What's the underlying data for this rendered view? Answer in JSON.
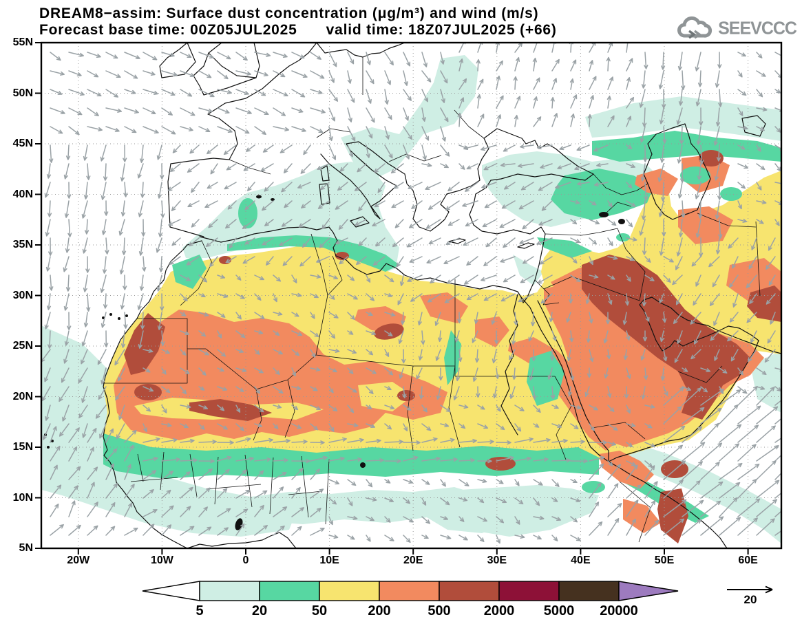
{
  "header": {
    "title": "DREAM8−assim: Surface dust concentration (μg/m³) and wind (m/s)",
    "base_time": "Forecast base time: 00Z05JUL2025",
    "valid_time": "valid time: 18Z07JUL2025 (+66)",
    "logo": "SEEVCCC"
  },
  "axes": {
    "lat": [
      "55N",
      "50N",
      "45N",
      "40N",
      "35N",
      "30N",
      "25N",
      "20N",
      "15N",
      "10N",
      "5N"
    ],
    "lon": [
      "20W",
      "10W",
      "0",
      "10E",
      "20E",
      "30E",
      "40E",
      "50E",
      "60E"
    ]
  },
  "legend": {
    "values": [
      "5",
      "20",
      "50",
      "200",
      "500",
      "2000",
      "5000",
      "20000"
    ],
    "colors": [
      "#ffffff",
      "#cfeee4",
      "#57d7a2",
      "#f7e46f",
      "#f28a5f",
      "#b14d3b",
      "#8d1137",
      "#45311f",
      "#9d7bbf"
    ],
    "wind_reference": "20"
  },
  "chart_data": {
    "type": "heatmap",
    "model": "DREAM8-assim",
    "title": "Surface dust concentration (μg/m³) and wind (m/s)",
    "forecast_base_time": "00Z05JUL2025",
    "valid_time": "18Z07JUL2025",
    "forecast_hour": "+66",
    "concentration_bins_ug_m3": [
      5,
      20,
      50,
      200,
      500,
      2000,
      5000,
      20000
    ],
    "bin_colors": [
      "#ffffff",
      "#cfeee4",
      "#57d7a2",
      "#f7e46f",
      "#f28a5f",
      "#b14d3b",
      "#8d1137",
      "#45311f",
      "#9d7bbf"
    ],
    "wind_reference_ms": 20,
    "lat_ticks": [
      "5N",
      "10N",
      "15N",
      "20N",
      "25N",
      "30N",
      "35N",
      "40N",
      "45N",
      "50N",
      "55N"
    ],
    "lon_ticks": [
      "20W",
      "10W",
      "0",
      "10E",
      "20E",
      "30E",
      "40E",
      "50E",
      "60E"
    ],
    "grid": "dotted 5-degree latitude / 10-degree longitude"
  }
}
